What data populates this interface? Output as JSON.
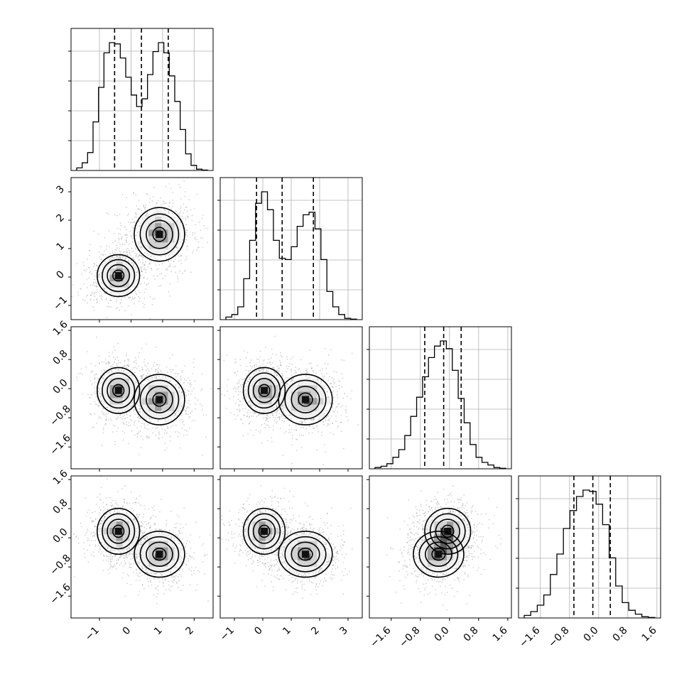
{
  "chart_data": {
    "type": "corner",
    "title": "",
    "grid": true,
    "n_params": 4,
    "params": [
      {
        "name": "",
        "lim": [
          -1.9,
          2.6
        ],
        "ticks": [
          -1,
          0,
          1,
          2
        ],
        "tick_labels": [
          "−1",
          "0",
          "1",
          "2"
        ],
        "quantiles": [
          -0.52,
          0.33,
          1.18
        ]
      },
      {
        "name": "",
        "lim": [
          -1.5,
          3.5
        ],
        "ticks": [
          -1,
          0,
          1,
          2,
          3
        ],
        "tick_labels": [
          "−1",
          "0",
          "1",
          "2",
          "3"
        ],
        "quantiles": [
          -0.22,
          0.68,
          1.78
        ]
      },
      {
        "name": "",
        "lim": [
          -2.2,
          1.7
        ],
        "ticks": [
          -1.6,
          -0.8,
          0.0,
          0.8,
          1.6
        ],
        "tick_labels": [
          "−1.6",
          "−0.8",
          "0.0",
          "0.8",
          "1.6"
        ],
        "quantiles": [
          -0.68,
          -0.16,
          0.32
        ]
      },
      {
        "name": "",
        "lim": [
          -2.2,
          1.7
        ],
        "ticks": [
          -1.6,
          -0.8,
          0.0,
          0.8,
          1.6
        ],
        "tick_labels": [
          "−1.6",
          "−0.8",
          "0.0",
          "0.8",
          "1.6"
        ],
        "quantiles": [
          -0.68,
          -0.16,
          0.32
        ]
      }
    ],
    "histograms": [
      {
        "param": 0,
        "counts": [
          0.02,
          0.06,
          0.14,
          0.38,
          0.65,
          0.92,
          1.0,
          0.99,
          0.88,
          0.73,
          0.59,
          0.5,
          0.56,
          0.75,
          0.93,
          1.0,
          0.92,
          0.74,
          0.54,
          0.32,
          0.13,
          0.04,
          0.01,
          0.003
        ]
      },
      {
        "param": 1,
        "counts": [
          0.02,
          0.04,
          0.1,
          0.32,
          0.62,
          0.91,
          1.0,
          0.86,
          0.62,
          0.48,
          0.47,
          0.57,
          0.73,
          0.82,
          0.84,
          0.71,
          0.47,
          0.22,
          0.1,
          0.04,
          0.01,
          0.004
        ]
      },
      {
        "param": 2,
        "counts": [
          0.01,
          0.02,
          0.04,
          0.09,
          0.15,
          0.26,
          0.41,
          0.56,
          0.72,
          0.87,
          0.96,
          1.0,
          0.94,
          0.77,
          0.55,
          0.36,
          0.19,
          0.09,
          0.05,
          0.03,
          0.01,
          0.004
        ]
      },
      {
        "param": 3,
        "counts": [
          0.02,
          0.05,
          0.1,
          0.18,
          0.34,
          0.5,
          0.7,
          0.84,
          0.95,
          1.0,
          0.99,
          0.89,
          0.73,
          0.47,
          0.25,
          0.12,
          0.06,
          0.03,
          0.01,
          0.004
        ]
      }
    ],
    "mixture": [
      {
        "weight": 0.5,
        "mean": [
          -0.4,
          0.05,
          -0.05,
          0.18
        ],
        "sd": [
          0.32,
          0.35,
          0.3,
          0.3
        ]
      },
      {
        "weight": 0.5,
        "mean": [
          0.9,
          1.5,
          -0.3,
          -0.45
        ],
        "sd": [
          0.38,
          0.45,
          0.33,
          0.3
        ]
      }
    ],
    "contour_colors": {
      "line": "#000000",
      "fill": [
        "#f0f0f0",
        "#d2d2d2",
        "#9e9e9e",
        "#5a5a5a",
        "#101010"
      ],
      "scatter": "#9a9a9a"
    }
  }
}
